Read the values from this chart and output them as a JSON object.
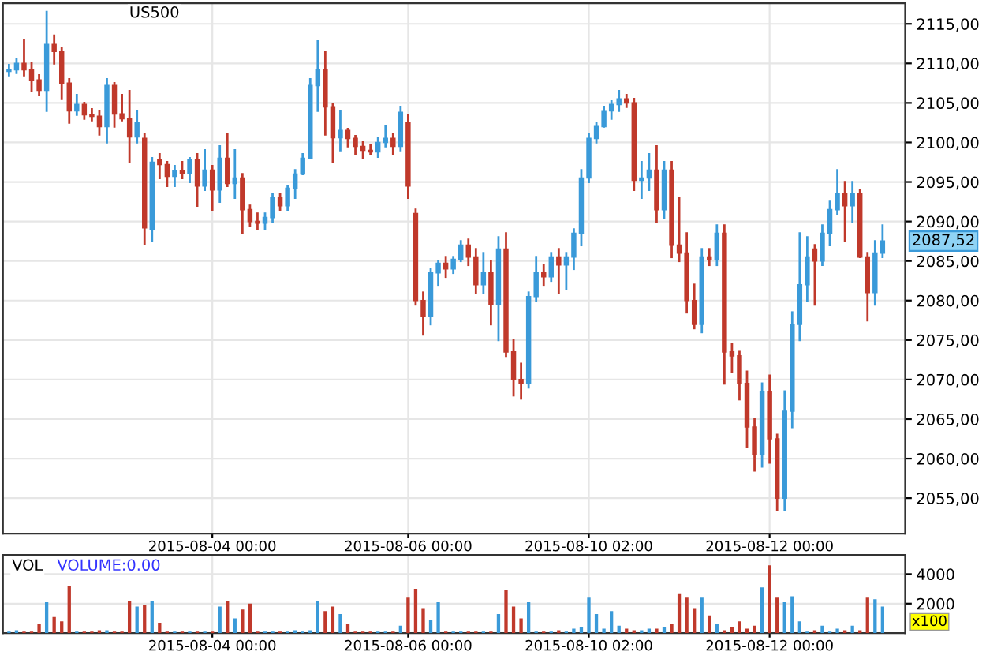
{
  "chart_data": [
    {
      "type": "candlestick",
      "title": "US500",
      "categories": [
        null,
        null,
        null,
        null,
        null,
        null,
        null,
        null,
        null,
        null,
        null,
        null,
        null,
        null,
        null,
        null,
        null,
        null,
        null,
        null,
        null,
        null,
        null,
        null,
        null,
        null,
        null,
        "2015-08-04 00:00",
        null,
        null,
        null,
        null,
        null,
        null,
        null,
        null,
        null,
        null,
        null,
        null,
        null,
        null,
        null,
        null,
        null,
        null,
        null,
        null,
        null,
        null,
        null,
        null,
        null,
        "2015-08-06 00:00",
        null,
        null,
        null,
        null,
        null,
        null,
        null,
        null,
        null,
        null,
        null,
        null,
        null,
        null,
        null,
        null,
        null,
        null,
        null,
        null,
        null,
        null,
        null,
        "2015-08-10 02:00",
        null,
        null,
        null,
        null,
        null,
        null,
        null,
        null,
        null,
        null,
        null,
        null,
        null,
        null,
        null,
        null,
        null,
        null,
        null,
        null,
        null,
        null,
        null,
        "2015-08-12 00:00",
        null,
        null,
        null,
        null,
        null,
        null,
        null,
        null,
        null,
        null,
        null,
        null,
        null,
        null,
        null
      ],
      "ohlc": [
        [
          2109.0,
          2109.8,
          2108.5,
          2109.2
        ],
        [
          2109.2,
          2110.6,
          2108.8,
          2110.0
        ],
        [
          2110.0,
          2113.0,
          2108.5,
          2109.2
        ],
        [
          2109.2,
          2110.0,
          2106.5,
          2107.9
        ],
        [
          2107.9,
          2108.5,
          2106.0,
          2106.6
        ],
        [
          2106.6,
          2116.5,
          2104.0,
          2112.4
        ],
        [
          2112.4,
          2113.5,
          2110.0,
          2111.5
        ],
        [
          2111.5,
          2112.0,
          2105.5,
          2107.5
        ],
        [
          2107.5,
          2108.0,
          2102.5,
          2104.0
        ],
        [
          2104.0,
          2106.0,
          2103.5,
          2104.8
        ],
        [
          2104.8,
          2105.0,
          2103.0,
          2103.5
        ],
        [
          2103.5,
          2104.2,
          2102.8,
          2103.3
        ],
        [
          2103.3,
          2104.0,
          2101.0,
          2102.0
        ],
        [
          2102.0,
          2108.0,
          2100.0,
          2107.2
        ],
        [
          2107.2,
          2107.5,
          2102.0,
          2103.6
        ],
        [
          2103.6,
          2106.0,
          2102.8,
          2103.0
        ],
        [
          2103.0,
          2106.5,
          2097.5,
          2100.7
        ],
        [
          2100.7,
          2104.0,
          2100.0,
          2102.5
        ],
        [
          2100.5,
          2101.0,
          2087.1,
          2089.2
        ],
        [
          2089.0,
          2098.0,
          2087.5,
          2097.5
        ],
        [
          2097.8,
          2098.5,
          2095.5,
          2097.2
        ],
        [
          2097.2,
          2097.5,
          2094.5,
          2095.7
        ],
        [
          2095.7,
          2097.0,
          2094.5,
          2096.4
        ],
        [
          2096.4,
          2097.5,
          2095.5,
          2096.1
        ],
        [
          2096.1,
          2098.0,
          2095.0,
          2097.8
        ],
        [
          2097.8,
          2098.5,
          2092.0,
          2094.5
        ],
        [
          2094.5,
          2099.0,
          2094.0,
          2096.5
        ],
        [
          2096.5,
          2097.0,
          2091.5,
          2094.0
        ],
        [
          2094.0,
          2099.5,
          2092.5,
          2098.0
        ],
        [
          2098.0,
          2101.0,
          2094.5,
          2094.8
        ],
        [
          2094.8,
          2099.0,
          2093.0,
          2095.5
        ],
        [
          2095.5,
          2096.0,
          2088.5,
          2091.5
        ],
        [
          2091.5,
          2092.0,
          2089.5,
          2090.0
        ],
        [
          2090.0,
          2091.0,
          2089.0,
          2089.8
        ],
        [
          2089.8,
          2091.0,
          2089.0,
          2090.5
        ],
        [
          2090.5,
          2093.5,
          2090.0,
          2093.0
        ],
        [
          2093.0,
          2093.5,
          2091.5,
          2092.0
        ],
        [
          2092.0,
          2094.5,
          2091.5,
          2094.2
        ],
        [
          2094.2,
          2096.5,
          2093.0,
          2096.0
        ],
        [
          2096.0,
          2098.5,
          2096.0,
          2098.0
        ],
        [
          2098.0,
          2108.0,
          2098.0,
          2107.2
        ],
        [
          2107.2,
          2112.8,
          2104.0,
          2109.2
        ],
        [
          2109.2,
          2111.5,
          2101.0,
          2104.5
        ],
        [
          2104.5,
          2104.8,
          2097.5,
          2100.6
        ],
        [
          2100.6,
          2104.0,
          2099.0,
          2101.5
        ],
        [
          2101.5,
          2101.7,
          2099.5,
          2100.5
        ],
        [
          2100.5,
          2100.8,
          2098.5,
          2099.5
        ],
        [
          2099.5,
          2100.0,
          2098.0,
          2099.0
        ],
        [
          2099.0,
          2099.7,
          2098.5,
          2098.8
        ],
        [
          2098.8,
          2100.5,
          2098.2,
          2100.0
        ],
        [
          2100.0,
          2102.0,
          2099.5,
          2100.5
        ],
        [
          2100.5,
          2101.0,
          2098.5,
          2099.5
        ],
        [
          2099.5,
          2104.5,
          2099.0,
          2103.8
        ],
        [
          2102.5,
          2103.5,
          2093.0,
          2094.5
        ],
        [
          2091.0,
          2091.5,
          2079.5,
          2080.0
        ],
        [
          2080.0,
          2081.0,
          2075.7,
          2078.0
        ],
        [
          2078.0,
          2084.0,
          2077.0,
          2083.5
        ],
        [
          2083.5,
          2085.0,
          2082.0,
          2084.7
        ],
        [
          2084.7,
          2085.5,
          2083.0,
          2084.0
        ],
        [
          2084.0,
          2085.5,
          2083.5,
          2085.2
        ],
        [
          2085.2,
          2087.5,
          2085.0,
          2087.0
        ],
        [
          2087.0,
          2087.7,
          2084.5,
          2085.5
        ],
        [
          2085.5,
          2086.5,
          2081.0,
          2082.0
        ],
        [
          2082.0,
          2086.0,
          2081.0,
          2083.5
        ],
        [
          2083.5,
          2085.0,
          2077.0,
          2079.5
        ],
        [
          2079.5,
          2088.0,
          2075.0,
          2086.5
        ],
        [
          2086.5,
          2088.5,
          2073.0,
          2073.5
        ],
        [
          2073.5,
          2075.0,
          2068.0,
          2070.0
        ],
        [
          2070.0,
          2072.0,
          2067.6,
          2069.5
        ],
        [
          2069.5,
          2081.0,
          2069.0,
          2080.5
        ],
        [
          2080.5,
          2085.5,
          2080.0,
          2083.5
        ],
        [
          2083.5,
          2084.5,
          2082.0,
          2083.0
        ],
        [
          2083.0,
          2086.0,
          2082.5,
          2085.5
        ],
        [
          2085.5,
          2086.5,
          2081.0,
          2084.5
        ],
        [
          2084.5,
          2086.0,
          2081.5,
          2085.5
        ],
        [
          2085.5,
          2089.0,
          2084.0,
          2088.5
        ],
        [
          2088.5,
          2096.5,
          2087.0,
          2095.5
        ],
        [
          2095.5,
          2101.0,
          2095.0,
          2100.5
        ],
        [
          2100.5,
          2102.5,
          2100.0,
          2102.0
        ],
        [
          2102.0,
          2104.5,
          2102.0,
          2104.0
        ],
        [
          2104.0,
          2105.2,
          2103.0,
          2104.8
        ],
        [
          2104.8,
          2106.5,
          2104.0,
          2105.5
        ],
        [
          2105.5,
          2106.0,
          2104.5,
          2105.0
        ],
        [
          2105.0,
          2105.5,
          2094.0,
          2095.2
        ],
        [
          2095.2,
          2097.5,
          2093.0,
          2095.5
        ],
        [
          2095.5,
          2098.5,
          2094.0,
          2096.5
        ],
        [
          2096.5,
          2099.5,
          2090.0,
          2091.5
        ],
        [
          2091.5,
          2097.5,
          2090.5,
          2096.5
        ],
        [
          2096.5,
          2097.5,
          2085.5,
          2087.0
        ],
        [
          2087.0,
          2093.0,
          2085.0,
          2086.0
        ],
        [
          2086.0,
          2088.5,
          2078.5,
          2080.0
        ],
        [
          2080.0,
          2082.0,
          2076.5,
          2077.0
        ],
        [
          2077.0,
          2086.5,
          2076.0,
          2085.5
        ],
        [
          2085.5,
          2086.5,
          2084.5,
          2085.2
        ],
        [
          2085.2,
          2089.5,
          2084.5,
          2088.5
        ],
        [
          2088.5,
          2089.5,
          2069.5,
          2073.5
        ],
        [
          2073.5,
          2074.5,
          2071.0,
          2073.0
        ],
        [
          2073.0,
          2073.5,
          2067.5,
          2069.5
        ],
        [
          2069.5,
          2071.0,
          2061.5,
          2064.0
        ],
        [
          2064.0,
          2065.0,
          2058.5,
          2060.5
        ],
        [
          2060.5,
          2069.5,
          2059.0,
          2068.5
        ],
        [
          2068.5,
          2070.5,
          2059.5,
          2062.5
        ],
        [
          2062.5,
          2063.0,
          2053.5,
          2055.0
        ],
        [
          2055.0,
          2068.5,
          2053.5,
          2066.0
        ],
        [
          2066.0,
          2078.5,
          2064.0,
          2077.0
        ],
        [
          2077.0,
          2088.5,
          2075.0,
          2082.0
        ],
        [
          2082.0,
          2088.0,
          2080.0,
          2085.5
        ],
        [
          2086.5,
          2087.0,
          2079.5,
          2085.0
        ],
        [
          2085.0,
          2089.5,
          2084.5,
          2088.5
        ],
        [
          2088.5,
          2092.5,
          2087.0,
          2091.5
        ],
        [
          2091.5,
          2096.5,
          2091.0,
          2093.5
        ],
        [
          2093.5,
          2095.0,
          2087.5,
          2092.0
        ],
        [
          2092.0,
          2095.0,
          2090.0,
          2093.5
        ],
        [
          2093.5,
          2094.0,
          2085.5,
          2085.5
        ],
        [
          2085.5,
          2086.0,
          2077.5,
          2081.0
        ],
        [
          2081.0,
          2087.5,
          2079.5,
          2086.0
        ],
        [
          2086.0,
          2089.5,
          2085.5,
          2087.52
        ]
      ],
      "colors": [
        "#3a9ad9",
        "#3a9ad9",
        "#c0392b",
        "#c0392b",
        "#c0392b",
        "#3a9ad9",
        "#c0392b",
        "#c0392b",
        "#c0392b",
        "#3a9ad9",
        "#c0392b",
        "#c0392b",
        "#c0392b",
        "#3a9ad9",
        "#c0392b",
        "#c0392b",
        "#c0392b",
        "#3a9ad9",
        "#c0392b",
        "#3a9ad9",
        "#c0392b",
        "#c0392b",
        "#3a9ad9",
        "#c0392b",
        "#3a9ad9",
        "#c0392b",
        "#3a9ad9",
        "#c0392b",
        "#3a9ad9",
        "#c0392b",
        "#3a9ad9",
        "#c0392b",
        "#c0392b",
        "#c0392b",
        "#3a9ad9",
        "#3a9ad9",
        "#c0392b",
        "#3a9ad9",
        "#3a9ad9",
        "#3a9ad9",
        "#3a9ad9",
        "#3a9ad9",
        "#c0392b",
        "#c0392b",
        "#3a9ad9",
        "#c0392b",
        "#c0392b",
        "#c0392b",
        "#c0392b",
        "#3a9ad9",
        "#3a9ad9",
        "#c0392b",
        "#3a9ad9",
        "#c0392b",
        "#c0392b",
        "#c0392b",
        "#3a9ad9",
        "#3a9ad9",
        "#c0392b",
        "#3a9ad9",
        "#3a9ad9",
        "#c0392b",
        "#c0392b",
        "#3a9ad9",
        "#c0392b",
        "#3a9ad9",
        "#c0392b",
        "#c0392b",
        "#c0392b",
        "#3a9ad9",
        "#3a9ad9",
        "#c0392b",
        "#3a9ad9",
        "#c0392b",
        "#3a9ad9",
        "#3a9ad9",
        "#3a9ad9",
        "#3a9ad9",
        "#3a9ad9",
        "#3a9ad9",
        "#3a9ad9",
        "#3a9ad9",
        "#c0392b",
        "#c0392b",
        "#3a9ad9",
        "#3a9ad9",
        "#c0392b",
        "#3a9ad9",
        "#c0392b",
        "#c0392b",
        "#c0392b",
        "#c0392b",
        "#3a9ad9",
        "#c0392b",
        "#3a9ad9",
        "#c0392b",
        "#c0392b",
        "#c0392b",
        "#c0392b",
        "#c0392b",
        "#3a9ad9",
        "#c0392b",
        "#c0392b",
        "#3a9ad9",
        "#3a9ad9",
        "#3a9ad9",
        "#3a9ad9",
        "#c0392b",
        "#3a9ad9",
        "#3a9ad9",
        "#3a9ad9",
        "#c0392b",
        "#3a9ad9",
        "#c0392b",
        "#c0392b",
        "#3a9ad9",
        "#3a9ad9"
      ],
      "ylim": [
        2050.5,
        2117.6
      ],
      "yticks": [
        {
          "value": 2055,
          "label": "2055,00"
        },
        {
          "value": 2060,
          "label": "2060,00"
        },
        {
          "value": 2065,
          "label": "2065,00"
        },
        {
          "value": 2070,
          "label": "2070,00"
        },
        {
          "value": 2075,
          "label": "2075,00"
        },
        {
          "value": 2080,
          "label": "2080,00"
        },
        {
          "value": 2085,
          "label": "2085,00"
        },
        {
          "value": 2090,
          "label": "2090,00"
        },
        {
          "value": 2095,
          "label": "2095,00"
        },
        {
          "value": 2100,
          "label": "2100,00"
        },
        {
          "value": 2105,
          "label": "2105,00"
        },
        {
          "value": 2110,
          "label": "2110,00"
        },
        {
          "value": 2115,
          "label": "2115,00"
        }
      ],
      "grid": true,
      "annotations": [
        "2087,52"
      ]
    },
    {
      "type": "bar",
      "title": "VOL",
      "subtitle": "VOLUME:0.00",
      "categories": [
        null,
        null,
        null,
        null,
        null,
        null,
        null,
        null,
        null,
        null,
        null,
        null,
        null,
        null,
        null,
        null,
        null,
        null,
        null,
        null,
        null,
        null,
        null,
        null,
        null,
        null,
        null,
        "2015-08-04 00:00",
        null,
        null,
        null,
        null,
        null,
        null,
        null,
        null,
        null,
        null,
        null,
        null,
        null,
        null,
        null,
        null,
        null,
        null,
        null,
        null,
        null,
        null,
        null,
        null,
        null,
        "2015-08-06 00:00",
        null,
        null,
        null,
        null,
        null,
        null,
        null,
        null,
        null,
        null,
        null,
        null,
        null,
        null,
        null,
        null,
        null,
        null,
        null,
        null,
        null,
        null,
        null,
        "2015-08-10 02:00",
        null,
        null,
        null,
        null,
        null,
        null,
        null,
        null,
        null,
        null,
        null,
        null,
        null,
        null,
        null,
        null,
        null,
        null,
        null,
        null,
        null,
        null,
        null,
        "2015-08-12 00:00",
        null,
        null,
        null,
        null,
        null,
        null,
        null,
        null,
        null,
        null,
        null,
        null,
        null,
        null,
        null
      ],
      "values": [
        100,
        200,
        100,
        100,
        600,
        2100,
        1100,
        800,
        3200,
        100,
        100,
        100,
        200,
        200,
        100,
        100,
        2200,
        1800,
        1900,
        2200,
        700,
        100,
        100,
        100,
        100,
        100,
        100,
        100,
        1800,
        2200,
        1000,
        1600,
        2000,
        100,
        100,
        100,
        100,
        100,
        200,
        100,
        200,
        2200,
        1500,
        1800,
        1300,
        600,
        100,
        100,
        100,
        100,
        100,
        100,
        500,
        2400,
        3000,
        1700,
        900,
        2100,
        100,
        100,
        100,
        100,
        100,
        100,
        100,
        1300,
        2900,
        1800,
        1000,
        2100,
        100,
        100,
        100,
        200,
        100,
        300,
        400,
        2400,
        1300,
        300,
        1500,
        500,
        300,
        200,
        200,
        300,
        300,
        400,
        600,
        2700,
        2400,
        1700,
        2400,
        1200,
        600,
        200,
        400,
        800,
        300,
        500,
        3100,
        4600,
        2400,
        2100,
        2500,
        800,
        100,
        200,
        500,
        100,
        300,
        200,
        500,
        200,
        2400,
        2300,
        1800
      ],
      "colors": [
        "#3a9ad9",
        "#3a9ad9",
        "#c0392b",
        "#c0392b",
        "#c0392b",
        "#3a9ad9",
        "#c0392b",
        "#c0392b",
        "#c0392b",
        "#3a9ad9",
        "#c0392b",
        "#c0392b",
        "#c0392b",
        "#3a9ad9",
        "#c0392b",
        "#c0392b",
        "#c0392b",
        "#3a9ad9",
        "#c0392b",
        "#3a9ad9",
        "#c0392b",
        "#c0392b",
        "#3a9ad9",
        "#c0392b",
        "#3a9ad9",
        "#c0392b",
        "#3a9ad9",
        "#c0392b",
        "#3a9ad9",
        "#c0392b",
        "#3a9ad9",
        "#c0392b",
        "#c0392b",
        "#c0392b",
        "#3a9ad9",
        "#3a9ad9",
        "#c0392b",
        "#3a9ad9",
        "#3a9ad9",
        "#3a9ad9",
        "#3a9ad9",
        "#3a9ad9",
        "#c0392b",
        "#c0392b",
        "#3a9ad9",
        "#c0392b",
        "#c0392b",
        "#c0392b",
        "#c0392b",
        "#3a9ad9",
        "#3a9ad9",
        "#c0392b",
        "#3a9ad9",
        "#c0392b",
        "#c0392b",
        "#c0392b",
        "#3a9ad9",
        "#3a9ad9",
        "#c0392b",
        "#3a9ad9",
        "#3a9ad9",
        "#c0392b",
        "#c0392b",
        "#3a9ad9",
        "#c0392b",
        "#3a9ad9",
        "#c0392b",
        "#c0392b",
        "#c0392b",
        "#3a9ad9",
        "#3a9ad9",
        "#c0392b",
        "#3a9ad9",
        "#c0392b",
        "#3a9ad9",
        "#3a9ad9",
        "#3a9ad9",
        "#3a9ad9",
        "#3a9ad9",
        "#3a9ad9",
        "#3a9ad9",
        "#3a9ad9",
        "#c0392b",
        "#c0392b",
        "#3a9ad9",
        "#3a9ad9",
        "#c0392b",
        "#3a9ad9",
        "#c0392b",
        "#c0392b",
        "#c0392b",
        "#c0392b",
        "#3a9ad9",
        "#c0392b",
        "#3a9ad9",
        "#c0392b",
        "#c0392b",
        "#c0392b",
        "#c0392b",
        "#c0392b",
        "#3a9ad9",
        "#c0392b",
        "#c0392b",
        "#3a9ad9",
        "#3a9ad9",
        "#3a9ad9",
        "#3a9ad9",
        "#c0392b",
        "#3a9ad9",
        "#3a9ad9",
        "#3a9ad9",
        "#c0392b",
        "#3a9ad9",
        "#c0392b",
        "#c0392b",
        "#3a9ad9",
        "#3a9ad9"
      ],
      "ylim": [
        0,
        5300
      ],
      "yticks": [
        2000,
        4000
      ],
      "grid": true,
      "annotations": [
        "x100"
      ]
    }
  ]
}
